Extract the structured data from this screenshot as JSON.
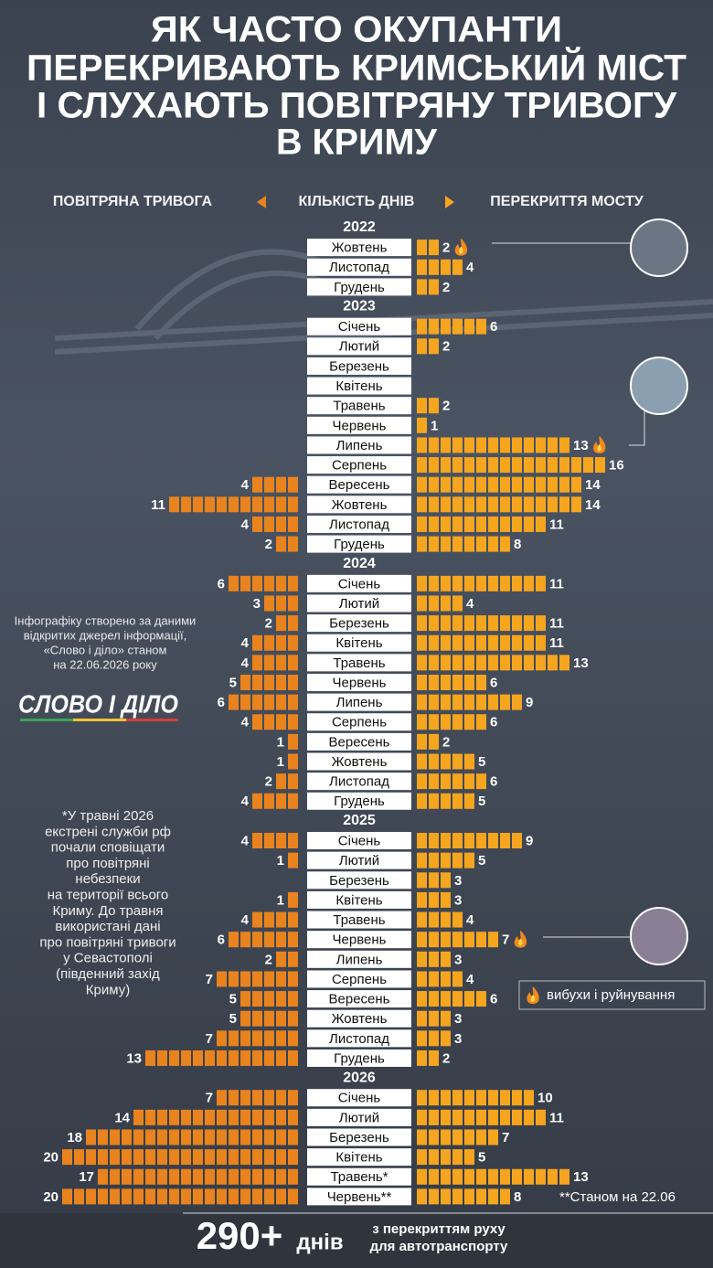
{
  "title": [
    "ЯК ЧАСТО ОКУПАНТИ",
    "ПЕРЕКРИВАЮТЬ КРИМСЬКИЙ МІСТ",
    "І СЛУХАЮТЬ ПОВІТРЯНУ ТРИВОГУ",
    "В КРИМУ"
  ],
  "chart_data": {
    "type": "butterfly",
    "center_label": "КІЛЬКІСТЬ ДНІВ",
    "series": [
      {
        "name": "ПОВІТРЯНА ТРИВОГА",
        "color": "#e8831e"
      },
      {
        "name": "ПЕРЕКРИТТЯ МОСТУ",
        "color": "#f6a51f"
      }
    ],
    "groups": [
      {
        "year": "2022",
        "categories": [
          "Жовтень",
          "Листопад",
          "Грудень"
        ],
        "alarm": [
          null,
          null,
          null
        ],
        "bridge": [
          2,
          4,
          2
        ],
        "explosion": [
          true,
          false,
          false
        ]
      },
      {
        "year": "2023",
        "categories": [
          "Січень",
          "Лютий",
          "Березень",
          "Квітень",
          "Травень",
          "Червень",
          "Липень",
          "Серпень",
          "Вересень",
          "Жовтень",
          "Листопад",
          "Грудень"
        ],
        "alarm": [
          null,
          null,
          null,
          null,
          null,
          null,
          null,
          null,
          4,
          11,
          4,
          2
        ],
        "bridge": [
          6,
          2,
          null,
          null,
          2,
          1,
          13,
          16,
          14,
          14,
          11,
          8
        ],
        "explosion": [
          false,
          false,
          false,
          false,
          false,
          false,
          true,
          false,
          false,
          false,
          false,
          false
        ]
      },
      {
        "year": "2024",
        "categories": [
          "Січень",
          "Лютий",
          "Березень",
          "Квітень",
          "Травень",
          "Червень",
          "Липень",
          "Серпень",
          "Вересень",
          "Жовтень",
          "Листопад",
          "Грудень"
        ],
        "alarm": [
          6,
          3,
          2,
          4,
          4,
          5,
          6,
          4,
          1,
          1,
          2,
          4
        ],
        "bridge": [
          11,
          4,
          11,
          11,
          13,
          6,
          9,
          6,
          2,
          5,
          6,
          5
        ],
        "explosion": [
          false,
          false,
          false,
          false,
          false,
          false,
          false,
          false,
          false,
          false,
          false,
          false
        ]
      },
      {
        "year": "2025",
        "categories": [
          "Січень",
          "Лютий",
          "Березень",
          "Квітень",
          "Травень",
          "Червень",
          "Липень",
          "Серпень",
          "Вересень",
          "Жовтень",
          "Листопад",
          "Грудень"
        ],
        "alarm": [
          4,
          1,
          null,
          1,
          4,
          6,
          2,
          7,
          5,
          5,
          7,
          13
        ],
        "bridge": [
          9,
          5,
          3,
          3,
          4,
          7,
          3,
          4,
          6,
          3,
          3,
          2
        ],
        "explosion": [
          false,
          false,
          false,
          false,
          false,
          true,
          false,
          false,
          false,
          false,
          false,
          false
        ]
      },
      {
        "year": "2026",
        "categories": [
          "Січень",
          "Лютий",
          "Березень",
          "Квітень",
          "Травень*",
          "Червень**"
        ],
        "alarm": [
          7,
          14,
          18,
          20,
          17,
          20
        ],
        "bridge": [
          10,
          11,
          7,
          5,
          13,
          8
        ],
        "explosion": [
          false,
          false,
          false,
          false,
          false,
          false
        ]
      }
    ],
    "explosion_legend": "вибухи і руйнування"
  },
  "source_note": [
    "Інфографіку створено за даними",
    "відкритих джерел інформації,",
    "«Слово і діло» станом",
    "на 22.06.2026 року"
  ],
  "logo": "СЛОВО І ДІЛО",
  "footnote": [
    "*У травні 2026",
    "екстрені служби рф",
    "почали сповіщати",
    "про повітряні",
    "небезпеки",
    "на території всього",
    "Криму. До травня",
    "використані дані",
    "про повітряні тривоги",
    "у Севастополі",
    "(південний захід",
    "Криму)"
  ],
  "date_note": "**Станом на 22.06",
  "total": "290+",
  "total_unit": "днів",
  "total_caption": [
    "з перекриттям руху",
    "для автотранспорту"
  ]
}
